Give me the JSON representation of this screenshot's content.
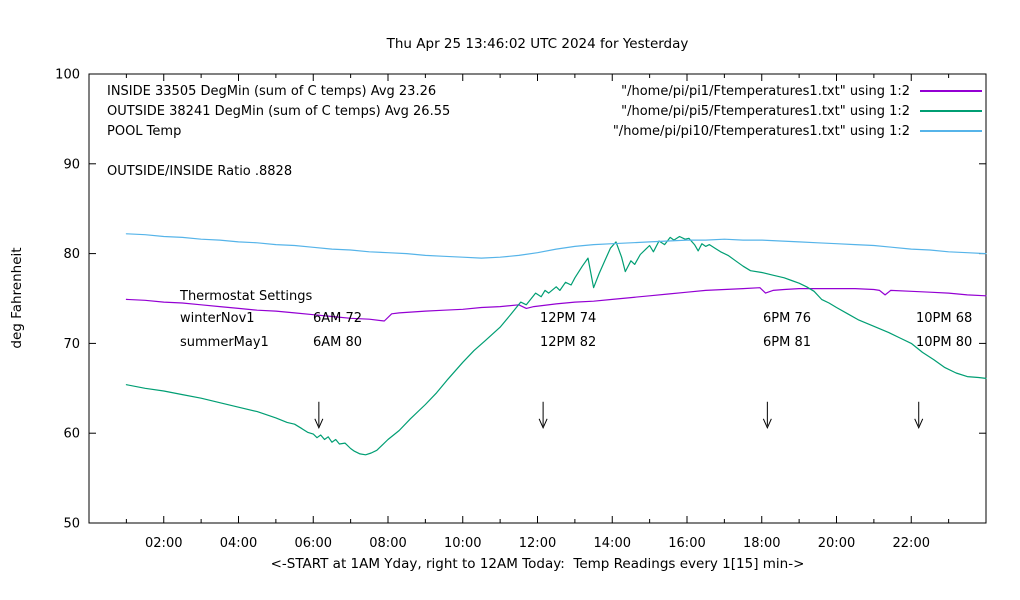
{
  "title": "Thu Apr 25 13:46:02 UTC 2024 for Yesterday",
  "axes": {
    "ylabel": "deg Fahrenheit",
    "xlabel": "<-START at 1AM Yday, right to 12AM Today:  Temp Readings every 1[15] min->"
  },
  "legend": {
    "rows": [
      {
        "label": "INSIDE 33505 DegMin (sum of C temps) Avg 23.26",
        "file": "\"/home/pi/pi1/Ftemperatures1.txt\" using 1:2"
      },
      {
        "label": "OUTSIDE 38241 DegMin (sum of C temps) Avg 26.55",
        "file": "\"/home/pi/pi5/Ftemperatures1.txt\" using 1:2"
      },
      {
        "label": "POOL Temp",
        "file": "\"/home/pi/pi10/Ftemperatures1.txt\" using 1:2"
      }
    ]
  },
  "annotations": {
    "ratio": "OUTSIDE/INSIDE Ratio .8828"
  },
  "thermostat": {
    "heading": "Thermostat Settings",
    "winter": {
      "name": "winterNov1",
      "c1": "6AM 72",
      "c2": "12PM 74",
      "c3": "6PM 76",
      "c4": "10PM 68"
    },
    "summer": {
      "name": "summerMay1",
      "c1": "6AM 80",
      "c2": "12PM 82",
      "c3": "6PM 81",
      "c4": "10PM 80"
    }
  },
  "chart_data": {
    "type": "line",
    "title": "Thu Apr 25 13:46:02 UTC 2024 for Yesterday",
    "xlabel": "<-START at 1AM Yday, right to 12AM Today:  Temp Readings every 1[15] min->",
    "ylabel": "deg Fahrenheit",
    "x_range": [
      0,
      24
    ],
    "y_range": [
      50,
      100
    ],
    "grid": false,
    "legend_position": "top-inside",
    "x_major_ticks": [
      2,
      4,
      6,
      8,
      10,
      12,
      14,
      16,
      18,
      20,
      22
    ],
    "x_tick_labels": [
      "02:00",
      "04:00",
      "06:00",
      "08:00",
      "10:00",
      "12:00",
      "14:00",
      "16:00",
      "18:00",
      "20:00",
      "22:00"
    ],
    "x_minor_ticks": [
      1,
      3,
      5,
      7,
      9,
      11,
      13,
      15,
      17,
      19,
      21,
      23
    ],
    "y_ticks": [
      50,
      60,
      70,
      80,
      90,
      100
    ],
    "text_color": "#000000",
    "arrows": [
      {
        "x": 6.15,
        "y_from": 63.5,
        "y_to": 60.6
      },
      {
        "x": 12.15,
        "y_from": 63.5,
        "y_to": 60.6
      },
      {
        "x": 18.15,
        "y_from": 63.5,
        "y_to": 60.6
      },
      {
        "x": 22.2,
        "y_from": 63.5,
        "y_to": 60.6
      }
    ],
    "series": [
      {
        "id": "inside",
        "name": "INSIDE 33505 DegMin (sum of C temps) Avg 23.26",
        "color": "#9400d3",
        "points": [
          [
            1,
            74.9
          ],
          [
            1.5,
            74.8
          ],
          [
            2,
            74.6
          ],
          [
            2.5,
            74.5
          ],
          [
            3,
            74.3
          ],
          [
            3.5,
            74.1
          ],
          [
            4,
            73.9
          ],
          [
            4.5,
            73.7
          ],
          [
            5,
            73.6
          ],
          [
            5.5,
            73.4
          ],
          [
            6,
            73.2
          ],
          [
            6.5,
            73.0
          ],
          [
            7,
            72.8
          ],
          [
            7.5,
            72.7
          ],
          [
            7.9,
            72.5
          ],
          [
            8.1,
            73.3
          ],
          [
            8.3,
            73.4
          ],
          [
            9,
            73.6
          ],
          [
            9.5,
            73.7
          ],
          [
            10,
            73.8
          ],
          [
            10.5,
            74.0
          ],
          [
            11,
            74.1
          ],
          [
            11.5,
            74.3
          ],
          [
            11.7,
            73.9
          ],
          [
            11.9,
            74.1
          ],
          [
            12.5,
            74.4
          ],
          [
            13,
            74.6
          ],
          [
            13.5,
            74.7
          ],
          [
            14,
            74.9
          ],
          [
            14.5,
            75.1
          ],
          [
            15,
            75.3
          ],
          [
            15.5,
            75.5
          ],
          [
            16,
            75.7
          ],
          [
            16.5,
            75.9
          ],
          [
            17,
            76.0
          ],
          [
            17.5,
            76.1
          ],
          [
            17.95,
            76.2
          ],
          [
            18.1,
            75.6
          ],
          [
            18.3,
            75.9
          ],
          [
            18.6,
            76.0
          ],
          [
            19,
            76.1
          ],
          [
            19.5,
            76.1
          ],
          [
            20,
            76.1
          ],
          [
            20.5,
            76.1
          ],
          [
            21,
            76.0
          ],
          [
            21.15,
            75.9
          ],
          [
            21.3,
            75.4
          ],
          [
            21.45,
            75.9
          ],
          [
            22,
            75.8
          ],
          [
            22.5,
            75.7
          ],
          [
            23,
            75.6
          ],
          [
            23.5,
            75.4
          ],
          [
            24,
            75.3
          ]
        ]
      },
      {
        "id": "outside",
        "name": "OUTSIDE 38241 DegMin (sum of C temps) Avg 26.55",
        "color": "#009e73",
        "points": [
          [
            1,
            65.4
          ],
          [
            1.5,
            65.0
          ],
          [
            2,
            64.7
          ],
          [
            2.5,
            64.3
          ],
          [
            3,
            63.9
          ],
          [
            3.5,
            63.4
          ],
          [
            4,
            62.9
          ],
          [
            4.5,
            62.4
          ],
          [
            5,
            61.7
          ],
          [
            5.3,
            61.2
          ],
          [
            5.5,
            61.0
          ],
          [
            5.7,
            60.5
          ],
          [
            5.85,
            60.1
          ],
          [
            6.0,
            59.9
          ],
          [
            6.1,
            59.5
          ],
          [
            6.2,
            59.8
          ],
          [
            6.3,
            59.3
          ],
          [
            6.4,
            59.6
          ],
          [
            6.5,
            59.0
          ],
          [
            6.6,
            59.3
          ],
          [
            6.7,
            58.8
          ],
          [
            6.85,
            58.9
          ],
          [
            7.0,
            58.3
          ],
          [
            7.1,
            58.0
          ],
          [
            7.25,
            57.7
          ],
          [
            7.4,
            57.6
          ],
          [
            7.55,
            57.8
          ],
          [
            7.7,
            58.1
          ],
          [
            7.85,
            58.7
          ],
          [
            8.0,
            59.3
          ],
          [
            8.3,
            60.3
          ],
          [
            8.6,
            61.6
          ],
          [
            9.0,
            63.2
          ],
          [
            9.3,
            64.5
          ],
          [
            9.6,
            66.0
          ],
          [
            10.0,
            67.9
          ],
          [
            10.3,
            69.2
          ],
          [
            10.6,
            70.3
          ],
          [
            11.0,
            71.8
          ],
          [
            11.3,
            73.3
          ],
          [
            11.55,
            74.6
          ],
          [
            11.7,
            74.3
          ],
          [
            11.95,
            75.6
          ],
          [
            12.1,
            75.2
          ],
          [
            12.2,
            75.9
          ],
          [
            12.3,
            75.6
          ],
          [
            12.5,
            76.3
          ],
          [
            12.6,
            75.9
          ],
          [
            12.75,
            76.8
          ],
          [
            12.9,
            76.5
          ],
          [
            13.0,
            77.3
          ],
          [
            13.2,
            78.6
          ],
          [
            13.35,
            79.5
          ],
          [
            13.5,
            76.2
          ],
          [
            13.65,
            77.8
          ],
          [
            13.8,
            79.2
          ],
          [
            13.95,
            80.6
          ],
          [
            14.1,
            81.3
          ],
          [
            14.25,
            79.6
          ],
          [
            14.35,
            78.0
          ],
          [
            14.5,
            79.2
          ],
          [
            14.6,
            78.8
          ],
          [
            14.75,
            79.9
          ],
          [
            14.9,
            80.5
          ],
          [
            15.0,
            80.9
          ],
          [
            15.1,
            80.2
          ],
          [
            15.25,
            81.4
          ],
          [
            15.4,
            81.0
          ],
          [
            15.55,
            81.8
          ],
          [
            15.65,
            81.5
          ],
          [
            15.8,
            81.9
          ],
          [
            15.95,
            81.6
          ],
          [
            16.05,
            81.7
          ],
          [
            16.2,
            81.0
          ],
          [
            16.3,
            80.3
          ],
          [
            16.4,
            81.1
          ],
          [
            16.5,
            80.8
          ],
          [
            16.6,
            81.0
          ],
          [
            16.75,
            80.6
          ],
          [
            16.9,
            80.2
          ],
          [
            17.1,
            79.8
          ],
          [
            17.3,
            79.2
          ],
          [
            17.5,
            78.6
          ],
          [
            17.7,
            78.1
          ],
          [
            18.0,
            77.9
          ],
          [
            18.3,
            77.6
          ],
          [
            18.6,
            77.3
          ],
          [
            18.8,
            77.0
          ],
          [
            19.0,
            76.7
          ],
          [
            19.2,
            76.3
          ],
          [
            19.4,
            75.8
          ],
          [
            19.6,
            74.9
          ],
          [
            19.8,
            74.5
          ],
          [
            20.0,
            74.0
          ],
          [
            20.3,
            73.3
          ],
          [
            20.6,
            72.6
          ],
          [
            21.0,
            71.9
          ],
          [
            21.4,
            71.2
          ],
          [
            21.7,
            70.6
          ],
          [
            22.0,
            70.0
          ],
          [
            22.3,
            69.0
          ],
          [
            22.6,
            68.2
          ],
          [
            22.9,
            67.3
          ],
          [
            23.2,
            66.7
          ],
          [
            23.5,
            66.3
          ],
          [
            23.8,
            66.2
          ],
          [
            24,
            66.1
          ]
        ]
      },
      {
        "id": "pool",
        "name": "POOL Temp",
        "color": "#56b4e9",
        "points": [
          [
            1,
            82.2
          ],
          [
            1.5,
            82.1
          ],
          [
            2,
            81.9
          ],
          [
            2.5,
            81.8
          ],
          [
            3,
            81.6
          ],
          [
            3.5,
            81.5
          ],
          [
            4,
            81.3
          ],
          [
            4.5,
            81.2
          ],
          [
            5,
            81.0
          ],
          [
            5.5,
            80.9
          ],
          [
            6,
            80.7
          ],
          [
            6.5,
            80.5
          ],
          [
            7,
            80.4
          ],
          [
            7.5,
            80.2
          ],
          [
            8,
            80.1
          ],
          [
            8.5,
            80.0
          ],
          [
            9,
            79.8
          ],
          [
            9.5,
            79.7
          ],
          [
            10,
            79.6
          ],
          [
            10.5,
            79.5
          ],
          [
            11,
            79.6
          ],
          [
            11.5,
            79.8
          ],
          [
            12,
            80.1
          ],
          [
            12.5,
            80.5
          ],
          [
            13,
            80.8
          ],
          [
            13.5,
            81.0
          ],
          [
            14,
            81.1
          ],
          [
            14.5,
            81.2
          ],
          [
            15,
            81.3
          ],
          [
            15.5,
            81.4
          ],
          [
            16,
            81.5
          ],
          [
            16.5,
            81.5
          ],
          [
            17,
            81.6
          ],
          [
            17.5,
            81.5
          ],
          [
            18,
            81.5
          ],
          [
            18.5,
            81.4
          ],
          [
            19,
            81.3
          ],
          [
            19.5,
            81.2
          ],
          [
            20,
            81.1
          ],
          [
            20.5,
            81.0
          ],
          [
            21,
            80.9
          ],
          [
            21.5,
            80.7
          ],
          [
            22,
            80.5
          ],
          [
            22.5,
            80.4
          ],
          [
            23,
            80.2
          ],
          [
            23.5,
            80.1
          ],
          [
            24,
            80.0
          ]
        ]
      }
    ]
  }
}
